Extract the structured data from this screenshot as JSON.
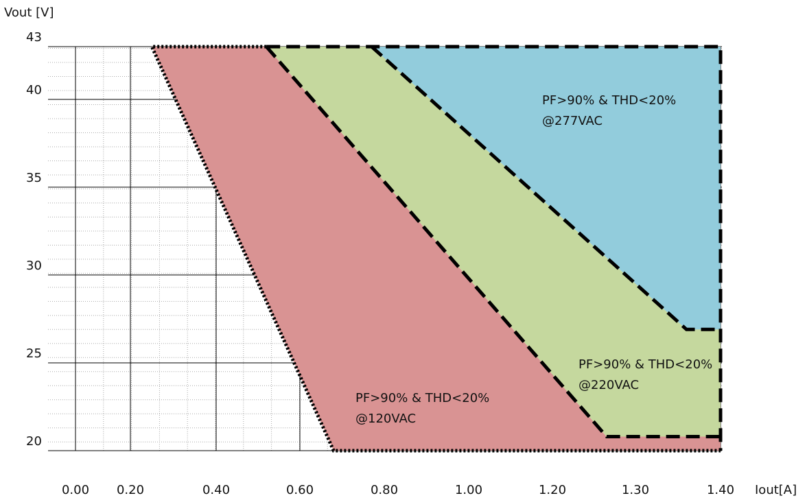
{
  "chart_data": {
    "type": "area",
    "xlabel": "Iout[A]",
    "ylabel": "Vout [V]",
    "ylim": [
      20,
      43
    ],
    "x_tick_labels": [
      "0.00",
      "0.20",
      "0.40",
      "0.60",
      "0.80",
      "1.00",
      "1.20",
      "1.30",
      "1.40"
    ],
    "y_ticks": [
      20,
      25,
      30,
      35,
      40,
      43
    ],
    "grid": true,
    "colors": {
      "region_120": "#d99393",
      "region_220": "#c5d89e",
      "region_277": "#92ccdc",
      "boundary": "#000000"
    },
    "series": [
      {
        "key": "region_120",
        "style": "dotted",
        "points": [
          [
            0.25,
            43
          ],
          [
            0.52,
            43
          ],
          [
            1.26,
            20.8
          ],
          [
            1.4,
            20.8
          ],
          [
            1.4,
            20
          ],
          [
            0.68,
            20
          ]
        ],
        "label_lines": [
          "PF>90% & THD<20%",
          "@120VAC"
        ]
      },
      {
        "key": "region_220",
        "style": "dashed",
        "points": [
          [
            0.52,
            43
          ],
          [
            0.77,
            43
          ],
          [
            1.36,
            26.9
          ],
          [
            1.4,
            26.9
          ],
          [
            1.4,
            20.8
          ],
          [
            1.26,
            20.8
          ]
        ],
        "label_lines": [
          "PF>90% & THD<20%",
          "@220VAC"
        ]
      },
      {
        "key": "region_277",
        "style": "dashed",
        "points": [
          [
            0.77,
            43
          ],
          [
            1.4,
            43
          ],
          [
            1.4,
            26.9
          ],
          [
            1.36,
            26.9
          ]
        ],
        "label_lines": [
          "PF>90% & THD<20%",
          "@277VAC"
        ]
      }
    ]
  }
}
